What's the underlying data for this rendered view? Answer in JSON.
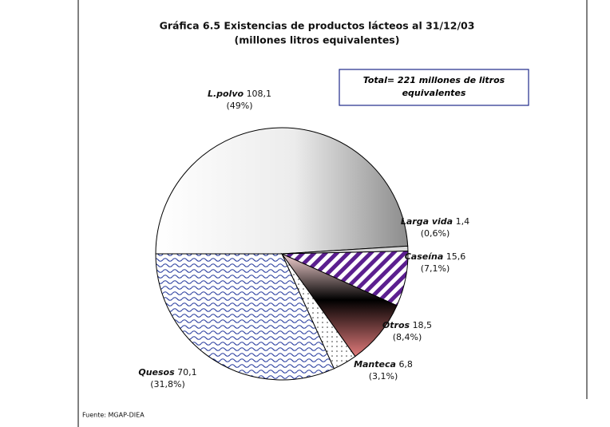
{
  "chart_data": {
    "type": "pie",
    "title": "Gráfica 6.5 Existencias de productos lácteos al 31/12/03",
    "subtitle": "(millones litros equivalentes)",
    "annotation": "Total= 221 millones de litros equivalentes",
    "source": "Fuente: MGAP-DIEA",
    "categories": [
      "L.polvo",
      "Larga vida",
      "Caseína",
      "Otros",
      "Manteca",
      "Quesos"
    ],
    "values": [
      108.1,
      1.4,
      15.6,
      18.5,
      6.8,
      70.1
    ],
    "value_labels": [
      "108,1",
      "1,4",
      "15,6",
      "18,5",
      "6,8",
      "70,1"
    ],
    "percents": [
      49,
      0.6,
      7.1,
      8.4,
      3.1,
      31.8
    ],
    "percent_labels": [
      "(49%)",
      "(0,6%)",
      "(7,1%)",
      "(8,4%)",
      "(3,1%)",
      "(31,8%)"
    ],
    "colors": [
      "#8c8c8c",
      "#d9d9d9",
      "#5b1f8f",
      "#e07a7a",
      "#333333",
      "#2b3fa0"
    ]
  }
}
